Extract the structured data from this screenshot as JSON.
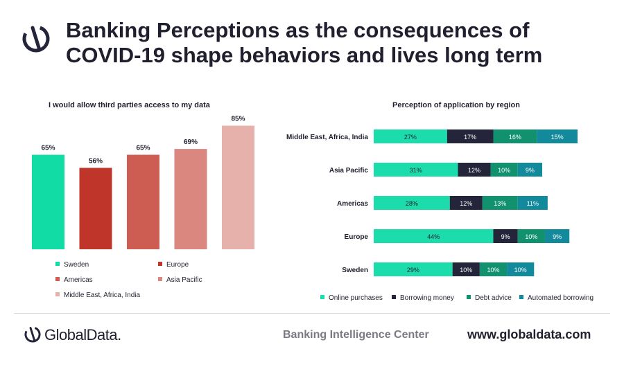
{
  "header": {
    "title_line1": "Banking Perceptions as the consequences of",
    "title_line2": "COVID-19 shape behaviors and lives long term",
    "logo_icon": "globaldata-logo-icon"
  },
  "colors": {
    "sweden": "#11dca6",
    "europe": "#c0352a",
    "americas": "#cd5c52",
    "asia_pacific": "#d9877f",
    "mea_india": "#e7b1ab",
    "online_purchases": "#1bdcaa",
    "borrowing_money": "#24243a",
    "debt_advice": "#12916e",
    "automated_borrowing": "#138a9c"
  },
  "chart_data": [
    {
      "type": "bar",
      "title": "I would allow third parties access to my data",
      "categories": [
        "Sweden",
        "Europe",
        "Americas",
        "Asia Pacific",
        "Middle East, Africa, India"
      ],
      "values": [
        65,
        56,
        65,
        69,
        85
      ],
      "data_labels": [
        "65%",
        "56%",
        "65%",
        "69%",
        "85%"
      ],
      "ylim": [
        0,
        100
      ],
      "legend": [
        "Sweden",
        "Europe",
        "Americas",
        "Asia Pacific",
        "Middle East, Africa, India"
      ],
      "legend_position": "bottom",
      "grid": false
    },
    {
      "type": "bar",
      "orientation": "horizontal",
      "stacked": true,
      "title": "Perception of application by region",
      "categories": [
        "Middle East, Africa, India",
        "Asia Pacific",
        "Americas",
        "Europe",
        "Sweden"
      ],
      "series": [
        {
          "name": "Online purchases",
          "values": [
            27,
            31,
            28,
            44,
            29
          ]
        },
        {
          "name": "Borrowing money",
          "values": [
            17,
            12,
            12,
            9,
            10
          ]
        },
        {
          "name": "Debt advice",
          "values": [
            16,
            10,
            13,
            10,
            10
          ]
        },
        {
          "name": "Automated borrowing",
          "values": [
            15,
            9,
            11,
            9,
            10
          ]
        }
      ],
      "legend_position": "bottom",
      "grid": false
    }
  ],
  "footer": {
    "brand": "GlobalData.",
    "center": "Banking Intelligence Center",
    "url": "www.globaldata.com"
  }
}
